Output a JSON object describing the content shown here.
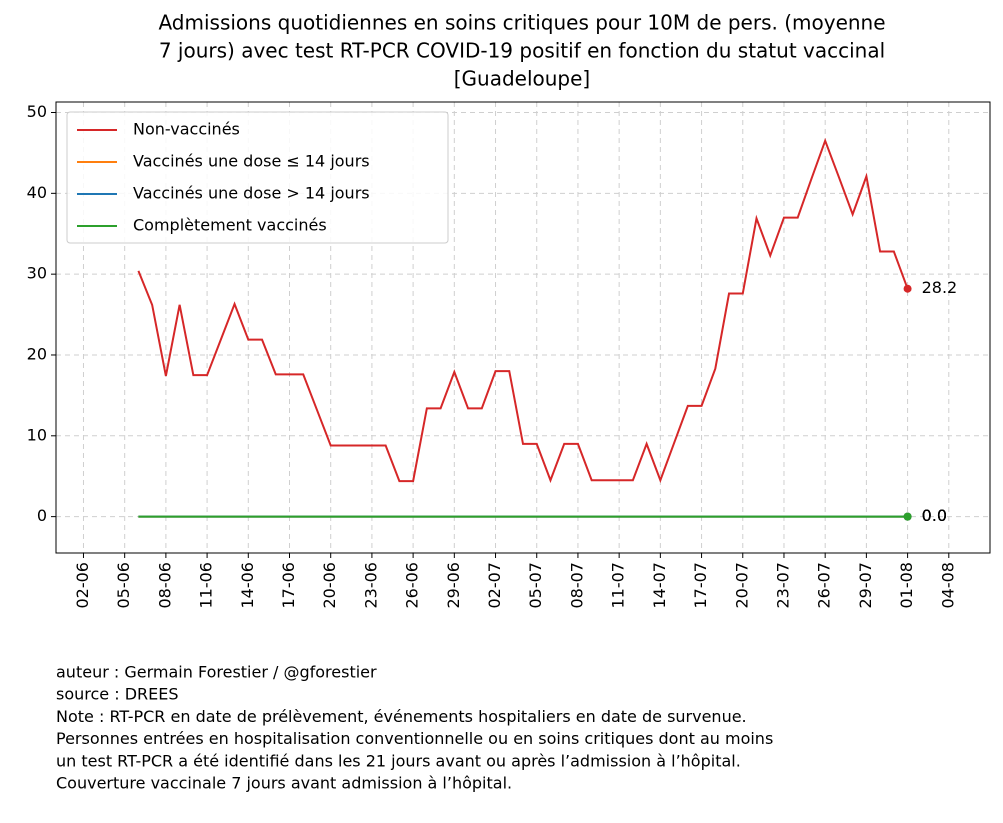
{
  "chart_data": {
    "type": "line",
    "title": [
      "Admissions quotidiennes en soins critiques pour 10M de pers. (moyenne",
      "7 jours) avec test RT-PCR COVID-19 positif en fonction du statut vaccinal",
      "[Guadeloupe]"
    ],
    "x": [
      "06-06",
      "07-06",
      "08-06",
      "09-06",
      "10-06",
      "11-06",
      "12-06",
      "13-06",
      "14-06",
      "15-06",
      "16-06",
      "17-06",
      "18-06",
      "19-06",
      "20-06",
      "21-06",
      "22-06",
      "23-06",
      "24-06",
      "25-06",
      "26-06",
      "27-06",
      "28-06",
      "29-06",
      "30-06",
      "01-07",
      "02-07",
      "03-07",
      "04-07",
      "05-07",
      "06-07",
      "07-07",
      "08-07",
      "09-07",
      "10-07",
      "11-07",
      "12-07",
      "13-07",
      "14-07",
      "15-07",
      "16-07",
      "17-07",
      "18-07",
      "19-07",
      "20-07",
      "21-07",
      "22-07",
      "23-07",
      "24-07",
      "25-07",
      "26-07",
      "27-07",
      "28-07",
      "29-07",
      "30-07",
      "31-07",
      "01-08"
    ],
    "series": [
      {
        "name": "Non-vaccinés",
        "color": "#d62728",
        "end_label": "28.2",
        "values": [
          30.4,
          26.2,
          17.4,
          26.2,
          17.5,
          17.5,
          21.9,
          26.3,
          21.9,
          21.9,
          17.6,
          17.6,
          17.6,
          13.2,
          8.8,
          8.8,
          8.8,
          8.8,
          8.8,
          4.4,
          4.4,
          13.4,
          13.4,
          17.9,
          13.4,
          13.4,
          18.0,
          18.0,
          9.0,
          9.0,
          4.5,
          9.0,
          9.0,
          4.5,
          4.5,
          4.5,
          4.5,
          9.0,
          4.5,
          9.1,
          13.7,
          13.7,
          18.3,
          27.6,
          27.6,
          36.9,
          32.3,
          37.0,
          37.0,
          41.8,
          46.5,
          42.0,
          37.4,
          42.1,
          32.8,
          32.8,
          28.2
        ]
      },
      {
        "name": "Vaccinés une dose ≤ 14 jours",
        "color": "#ff7f0e",
        "end_label": "0.0",
        "values": [
          0,
          0,
          0,
          0,
          0,
          0,
          0,
          0,
          0,
          0,
          0,
          0,
          0,
          0,
          0,
          0,
          0,
          0,
          0,
          0,
          0,
          0,
          0,
          0,
          0,
          0,
          0,
          0,
          0,
          0,
          0,
          0,
          0,
          0,
          0,
          0,
          0,
          0,
          0,
          0,
          0,
          0,
          0,
          0,
          0,
          0,
          0,
          0,
          0,
          0,
          0,
          0,
          0,
          0,
          0,
          0,
          0
        ]
      },
      {
        "name": "Vaccinés une dose > 14 jours",
        "color": "#1f77b4",
        "end_label": "0.0",
        "values": [
          0,
          0,
          0,
          0,
          0,
          0,
          0,
          0,
          0,
          0,
          0,
          0,
          0,
          0,
          0,
          0,
          0,
          0,
          0,
          0,
          0,
          0,
          0,
          0,
          0,
          0,
          0,
          0,
          0,
          0,
          0,
          0,
          0,
          0,
          0,
          0,
          0,
          0,
          0,
          0,
          0,
          0,
          0,
          0,
          0,
          0,
          0,
          0,
          0,
          0,
          0,
          0,
          0,
          0,
          0,
          0,
          0
        ]
      },
      {
        "name": "Complètement vaccinés",
        "color": "#2ca02c",
        "end_label": "0.0",
        "values": [
          0,
          0,
          0,
          0,
          0,
          0,
          0,
          0,
          0,
          0,
          0,
          0,
          0,
          0,
          0,
          0,
          0,
          0,
          0,
          0,
          0,
          0,
          0,
          0,
          0,
          0,
          0,
          0,
          0,
          0,
          0,
          0,
          0,
          0,
          0,
          0,
          0,
          0,
          0,
          0,
          0,
          0,
          0,
          0,
          0,
          0,
          0,
          0,
          0,
          0,
          0,
          0,
          0,
          0,
          0,
          0,
          0
        ]
      }
    ],
    "xlim": [
      "31-05",
      "07-08"
    ],
    "xticks": [
      "02-06",
      "05-06",
      "08-06",
      "11-06",
      "14-06",
      "17-06",
      "20-06",
      "23-06",
      "26-06",
      "29-06",
      "02-07",
      "05-07",
      "08-07",
      "11-07",
      "14-07",
      "17-07",
      "20-07",
      "23-07",
      "26-07",
      "29-07",
      "01-08",
      "04-08"
    ],
    "ylim": [
      -4.5,
      51.3
    ],
    "yticks": [
      0,
      10,
      20,
      30,
      40,
      50
    ],
    "grid": true,
    "legend": "upper left",
    "notes": [
      "auteur : Germain Forestier / @gforestier",
      "source : DREES",
      "Note : RT-PCR en date de prélèvement, événements hospitaliers en date de survenue.",
      "Personnes entrées en hospitalisation conventionnelle ou en soins critiques dont au moins",
      "un test RT-PCR a été identifié dans les 21 jours avant ou après l’admission à l’hôpital.",
      "Couverture vaccinale 7 jours avant admission à l’hôpital."
    ]
  }
}
